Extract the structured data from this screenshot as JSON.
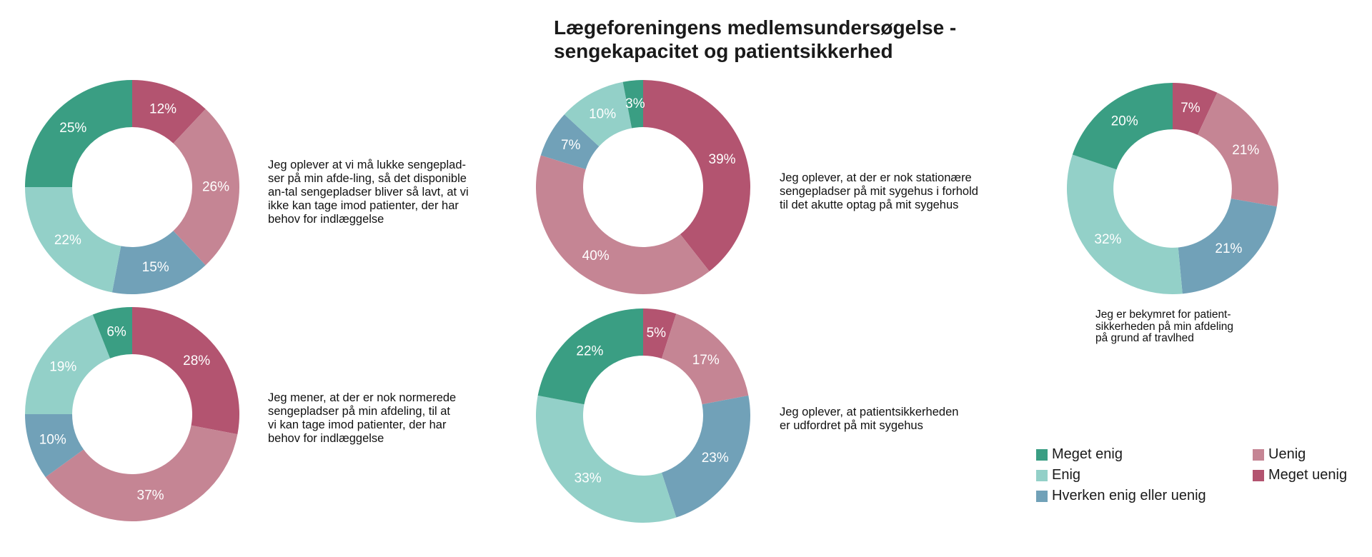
{
  "title": "Lægeforeningens medlemsundersøgelse -\nsengekapacitet og patientsikkerhed",
  "colors": {
    "meget_enig": "#3a9e83",
    "enig": "#93d0c8",
    "hverken": "#71a1b8",
    "uenig": "#c58594",
    "meget_uenig": "#b35470"
  },
  "legend": [
    {
      "key": "meget_enig",
      "label": "Meget enig"
    },
    {
      "key": "uenig",
      "label": "Uenig"
    },
    {
      "key": "enig",
      "label": "Enig"
    },
    {
      "key": "meget_uenig",
      "label": "Meget uenig"
    },
    {
      "key": "hverken",
      "label": "Hverken enig eller uenig"
    }
  ],
  "chart_data": [
    {
      "type": "pie",
      "question": "Jeg oplever at vi må lukke sengeplad-\nser på min afde-ling, så det disponible\nan-tal sengepladser bliver så lavt, at vi\nikke kan tage imod patienter, der har\nbehov for indlæggelse",
      "slices": [
        {
          "key": "meget_uenig",
          "label": "Meget uenig",
          "value": 12,
          "text": "12%"
        },
        {
          "key": "uenig",
          "label": "Uenig",
          "value": 26,
          "text": "26%"
        },
        {
          "key": "hverken",
          "label": "Hverken enig eller uenig",
          "value": 15,
          "text": "15%"
        },
        {
          "key": "enig",
          "label": "Enig",
          "value": 22,
          "text": "22%"
        },
        {
          "key": "meget_enig",
          "label": "Meget enig",
          "value": 25,
          "text": "25%"
        }
      ]
    },
    {
      "type": "pie",
      "question": "Jeg oplever, at der er nok stationære\nsengepladser på mit sygehus i forhold\ntil det akutte optag på mit sygehus",
      "slices": [
        {
          "key": "meget_uenig",
          "label": "Meget uenig",
          "value": 39,
          "text": "39%"
        },
        {
          "key": "uenig",
          "label": "Uenig",
          "value": 40,
          "text": "40%"
        },
        {
          "key": "hverken",
          "label": "Hverken enig eller uenig",
          "value": 7,
          "text": "7%"
        },
        {
          "key": "enig",
          "label": "Enig",
          "value": 10,
          "text": "10%"
        },
        {
          "key": "meget_enig",
          "label": "Meget enig",
          "value": 3,
          "text": "3%"
        }
      ]
    },
    {
      "type": "pie",
      "question": "Jeg er bekymret for patient-\nsikkerheden på min afdeling\npå grund af travlhed",
      "slices": [
        {
          "key": "meget_uenig",
          "label": "Meget uenig",
          "value": 7,
          "text": "7%"
        },
        {
          "key": "uenig",
          "label": "Uenig",
          "value": 21,
          "text": "21%"
        },
        {
          "key": "hverken",
          "label": "Hverken enig eller uenig",
          "value": 21,
          "text": "21%"
        },
        {
          "key": "enig",
          "label": "Enig",
          "value": 32,
          "text": "32%"
        },
        {
          "key": "meget_enig",
          "label": "Meget enig",
          "value": 20,
          "text": "20%"
        }
      ]
    },
    {
      "type": "pie",
      "question": "Jeg mener, at der er nok normerede\nsengepladser på min afdeling, til at\nvi kan tage imod patienter, der har\nbehov for indlæggelse",
      "slices": [
        {
          "key": "meget_uenig",
          "label": "Meget uenig",
          "value": 28,
          "text": "28%"
        },
        {
          "key": "uenig",
          "label": "Uenig",
          "value": 37,
          "text": "37%"
        },
        {
          "key": "hverken",
          "label": "Hverken enig eller uenig",
          "value": 10,
          "text": "10%"
        },
        {
          "key": "enig",
          "label": "Enig",
          "value": 19,
          "text": "19%"
        },
        {
          "key": "meget_enig",
          "label": "Meget enig",
          "value": 6,
          "text": "6%"
        }
      ]
    },
    {
      "type": "pie",
      "question": "Jeg oplever, at patientsikkerheden\ner udfordret på mit sygehus",
      "slices": [
        {
          "key": "meget_uenig",
          "label": "Meget uenig",
          "value": 5,
          "text": "5%"
        },
        {
          "key": "uenig",
          "label": "Uenig",
          "value": 17,
          "text": "17%"
        },
        {
          "key": "hverken",
          "label": "Hverken enig eller uenig",
          "value": 23,
          "text": "23%"
        },
        {
          "key": "enig",
          "label": "Enig",
          "value": 33,
          "text": "33%"
        },
        {
          "key": "meget_enig",
          "label": "Meget enig",
          "value": 22,
          "text": "22%"
        }
      ]
    }
  ]
}
